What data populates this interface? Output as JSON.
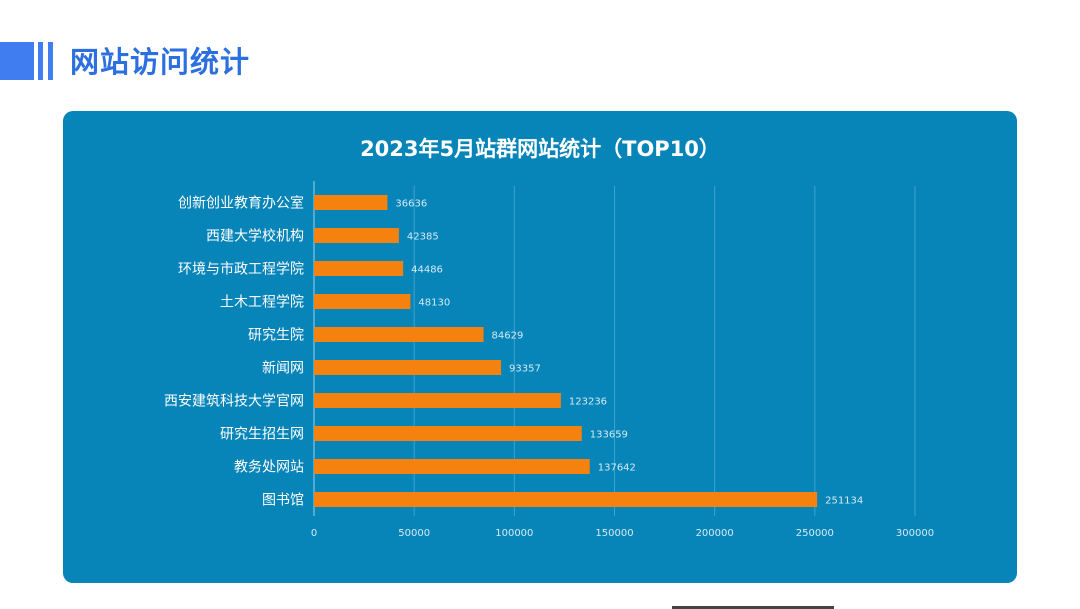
{
  "page": {
    "title": "网站访问统计"
  },
  "colors": {
    "panel": "#0784b8",
    "bar": "#f5820f",
    "accent": "#3f7df0",
    "title": "#2c6fde"
  },
  "chart_data": {
    "type": "bar",
    "orientation": "horizontal",
    "title": "2023年5月站群网站统计（TOP10）",
    "xlabel": "",
    "ylabel": "",
    "categories": [
      "创新创业教育办公室",
      "西建大学校机构",
      "环境与市政工程学院",
      "土木工程学院",
      "研究生院",
      "新闻网",
      "西安建筑科技大学官网",
      "研究生招生网",
      "教务处网站",
      "图书馆"
    ],
    "values": [
      36636,
      42385,
      44486,
      48130,
      84629,
      93357,
      123236,
      133659,
      137642,
      251134
    ],
    "data_labels": [
      "36636",
      "42385",
      "44486",
      "48130",
      "84629",
      "93357",
      "123236",
      "133659",
      "137642",
      "251134"
    ],
    "xlim": [
      0,
      300000
    ],
    "xticks": [
      "0",
      "50000",
      "100000",
      "150000",
      "200000",
      "250000",
      "300000"
    ],
    "grid": true,
    "legend": "none"
  }
}
